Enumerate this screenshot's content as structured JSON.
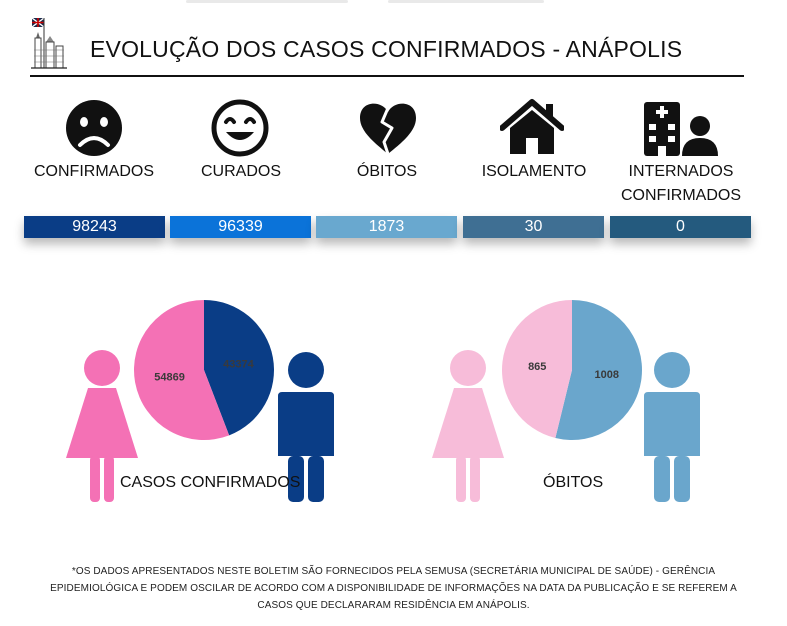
{
  "header": {
    "title": "EVOLUÇÃO DOS CASOS CONFIRMADOS - ANÁPOLIS"
  },
  "stats": [
    {
      "label": "CONFIRMADOS",
      "value": "98243",
      "icon": "sad-face-icon",
      "color": "#0a3d86"
    },
    {
      "label": "CURADOS",
      "value": "96339",
      "icon": "happy-face-icon",
      "color": "#0b73d9"
    },
    {
      "label": "ÓBITOS",
      "value": "1873",
      "icon": "broken-heart-icon",
      "color": "#69a8cf"
    },
    {
      "label": "ISOLAMENTO",
      "value": "30",
      "icon": "house-icon",
      "color": "#3f6f93"
    },
    {
      "label": "INTERNADOS CONFIRMADOS",
      "value": "0",
      "icon": "hospital-icon",
      "color": "#245a7e"
    }
  ],
  "charts": {
    "confirmed_title": "CASOS CONFIRMADOS",
    "deaths_title": "ÓBITOS"
  },
  "chart_data": [
    {
      "type": "pie",
      "title": "CASOS CONFIRMADOS",
      "categories": [
        "Feminino",
        "Masculino"
      ],
      "values": [
        54869,
        43374
      ],
      "labels": [
        "54869",
        "43374"
      ],
      "colors": [
        "#f471b5",
        "#0a3d86"
      ]
    },
    {
      "type": "pie",
      "title": "ÓBITOS",
      "categories": [
        "Feminino",
        "Masculino"
      ],
      "values": [
        865,
        1008
      ],
      "labels": [
        "865",
        "1008"
      ],
      "colors": [
        "#f7bcd9",
        "#6aa6cc"
      ]
    }
  ],
  "footnote": "*OS DADOS APRESENTADOS NESTE BOLETIM SÃO FORNECIDOS PELA SEMUSA (SECRETÁRIA MUNICIPAL DE SAÚDE) - GERÊNCIA EPIDEMIOLÓGICA E PODEM OSCILAR DE ACORDO COM A DISPONIBILIDADE DE INFORMAÇÕES NA DATA DA PUBLICAÇÃO E SE REFEREM A CASOS QUE DECLARARAM RESIDÊNCIA EM ANÁPOLIS."
}
